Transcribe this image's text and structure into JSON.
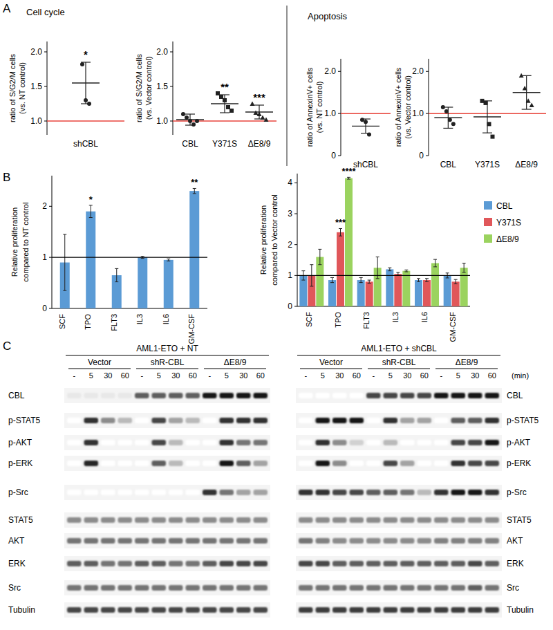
{
  "panel_labels": [
    "A",
    "B",
    "C"
  ],
  "section_titles": [
    "Cell cycle",
    "Apoptosis"
  ],
  "chart_data": [
    {
      "type": "dot",
      "ylabel": [
        "ratio of S/G2/M cells",
        "(vs. NT control)"
      ],
      "categories": [
        "shCBL"
      ],
      "values": [
        1.55
      ],
      "errors": [
        0.3
      ],
      "points": [
        [
          1.82,
          1.3,
          1.25
        ]
      ],
      "annotations": [
        "*"
      ],
      "reference": 1,
      "ylim": [
        0.8,
        2.15
      ],
      "yticks": [
        {
          "value": 1,
          "label": "1.0"
        },
        {
          "value": 1.5,
          "label": "1.5"
        },
        {
          "value": 2,
          "label": "2.0"
        }
      ]
    },
    {
      "type": "dot",
      "ylabel": [
        "ratio of S/G2/M cells",
        "(vs. Vector control)"
      ],
      "categories": [
        "CBL",
        "Y371S",
        "ΔE8/9"
      ],
      "values": [
        1.02,
        1.25,
        1.13
      ],
      "errors": [
        0.08,
        0.13,
        0.1
      ],
      "points": [
        [
          1.1,
          1.05,
          1.0,
          0.95,
          1.0
        ],
        [
          1.4,
          1.35,
          1.3,
          1.2,
          1.15
        ],
        [
          1.25,
          1.12,
          1.1,
          1.05,
          1.02
        ]
      ],
      "annotations": [
        null,
        "**",
        "***"
      ],
      "reference": 1,
      "ylim": [
        0.8,
        2.15
      ],
      "yticks": [
        {
          "value": 1,
          "label": "1.0"
        },
        {
          "value": 1.5,
          "label": "1.5"
        },
        {
          "value": 2,
          "label": "2.0"
        }
      ]
    },
    {
      "type": "dot",
      "ylabel": [
        "ratio of AnnexinV+ cells",
        "(vs. NT control)"
      ],
      "categories": [
        "shCBL"
      ],
      "values": [
        0.7
      ],
      "errors": [
        0.17
      ],
      "points": [
        [
          0.85,
          0.8,
          0.5
        ]
      ],
      "reference": 1,
      "ylim": [
        0,
        2.3
      ],
      "yticks": [
        0,
        {
          "value": 1,
          "label": "1.0"
        },
        {
          "value": 2,
          "label": "2.0"
        }
      ]
    },
    {
      "type": "dot",
      "ylabel": [
        "ratio of AnnexinV+ cells",
        "(vs. Vector control)"
      ],
      "categories": [
        "CBL",
        "Y371S",
        "ΔE8/9"
      ],
      "values": [
        0.9,
        0.92,
        1.5
      ],
      "errors": [
        0.25,
        0.38,
        0.4
      ],
      "points": [
        [
          1.15,
          1.05,
          0.85,
          0.75
        ],
        [
          1.3,
          1.25,
          0.75,
          0.45
        ],
        [
          1.9,
          1.6,
          1.3,
          1.2
        ]
      ],
      "reference": 1,
      "ylim": [
        0,
        2.3
      ],
      "yticks": [
        0,
        {
          "value": 1,
          "label": "1.0"
        },
        {
          "value": 2,
          "label": "2.0"
        }
      ]
    },
    {
      "type": "bar",
      "ylabel": [
        "Relative proliferation",
        "compared to NT control"
      ],
      "categories": [
        "SCF",
        "TPO",
        "FLT3",
        "IL3",
        "IL6",
        "GM-CSF"
      ],
      "values": [
        0.9,
        1.9,
        0.65,
        1.0,
        0.95,
        2.3
      ],
      "errors": [
        0.55,
        0.12,
        0.13,
        0.02,
        0.02,
        0.05
      ],
      "annotations": [
        null,
        "*",
        null,
        null,
        null,
        "**"
      ],
      "color": "#5b9bd5",
      "reference": 1,
      "ylim": [
        0,
        2.6
      ],
      "yticks": [
        0,
        1,
        2
      ]
    },
    {
      "type": "bar",
      "ylabel": [
        "Relative proliferation",
        "compared to Vector control"
      ],
      "categories": [
        "SCF",
        "TPO",
        "FLT3",
        "IL3",
        "IL6",
        "GM-CSF"
      ],
      "series": [
        {
          "name": "CBL",
          "color": "#5b9bd5",
          "values": [
            1.0,
            0.85,
            0.85,
            1.2,
            0.85,
            1.0
          ],
          "errors": [
            0.15,
            0.08,
            0.08,
            0.05,
            0.05,
            0.08
          ]
        },
        {
          "name": "Y371S",
          "color": "#e0575a",
          "values": [
            1.0,
            2.4,
            0.8,
            1.05,
            0.85,
            0.8
          ],
          "errors": [
            0.35,
            0.12,
            0.05,
            0.05,
            0.05,
            0.07
          ],
          "annotations": [
            null,
            "***",
            null,
            null,
            null,
            null
          ]
        },
        {
          "name": "ΔE8/9",
          "color": "#9bd35f",
          "values": [
            1.6,
            4.15,
            1.25,
            1.15,
            1.4,
            1.25
          ],
          "errors": [
            0.25,
            0.03,
            0.35,
            0.03,
            0.12,
            0.15
          ],
          "annotations": [
            null,
            "****",
            null,
            null,
            null,
            null
          ]
        }
      ],
      "legend": "right",
      "reference": 1,
      "ylim": [
        0,
        4.3
      ],
      "yticks": [
        0,
        1,
        2,
        3,
        4
      ]
    }
  ],
  "blot": {
    "conditions": [
      "AML1-ETO + NT",
      "AML1-ETO + shCBL"
    ],
    "groups": [
      "Vector",
      "shR-CBL",
      "ΔE8/9"
    ],
    "times": [
      "-",
      "5",
      "30",
      "60"
    ],
    "time_unit": "(min)",
    "rows": [
      {
        "name": "CBL",
        "intensity": [
          [
            0.1,
            0.1,
            0.1,
            0.1,
            0.7,
            0.7,
            0.7,
            0.7,
            1,
            1,
            1,
            1
          ],
          [
            0,
            0,
            0,
            0,
            0.8,
            0.8,
            0.8,
            0.8,
            1,
            1,
            1,
            1
          ]
        ]
      },
      {
        "name": "p-STAT5",
        "intensity": [
          [
            0,
            0.9,
            0.5,
            0.3,
            0,
            0.8,
            0.4,
            0.3,
            0,
            0.9,
            0.9,
            0.9
          ],
          [
            0,
            1,
            1,
            1,
            0,
            0.9,
            0.4,
            0.4,
            0,
            0.7,
            0.7,
            0.9
          ]
        ]
      },
      {
        "name": "p-AKT",
        "intensity": [
          [
            0,
            0.9,
            0,
            0,
            0,
            0.8,
            0.3,
            0,
            0,
            0.9,
            0.6,
            0.6
          ],
          [
            0,
            0.9,
            0.5,
            0.2,
            0,
            0.3,
            0,
            0,
            0,
            0.8,
            0.8,
            1
          ]
        ]
      },
      {
        "name": "p-ERK",
        "intensity": [
          [
            0,
            0.95,
            0,
            0,
            0,
            0.7,
            0.3,
            0,
            0,
            1,
            0.7,
            0.4
          ],
          [
            0,
            1,
            0.5,
            0,
            0,
            0.8,
            0.4,
            0,
            0,
            0.9,
            0.8,
            0.8
          ]
        ]
      },
      {
        "name": "p-Src",
        "intensity": [
          [
            0,
            0,
            0,
            0,
            0,
            0,
            0,
            0,
            0.9,
            0.6,
            0.4,
            0.4
          ],
          [
            0.9,
            0.9,
            0.8,
            0.8,
            0.7,
            0.7,
            0.6,
            0.3,
            0.9,
            1,
            1,
            0.9
          ]
        ]
      },
      {
        "name": "STAT5",
        "intensity": [
          [
            0.5,
            0.5,
            0.5,
            0.5,
            0.5,
            0.5,
            0.5,
            0.5,
            0.5,
            0.5,
            0.5,
            0.5
          ],
          [
            0.5,
            0.5,
            0.5,
            0.5,
            0.5,
            0.5,
            0.5,
            0.5,
            0.5,
            0.5,
            0.5,
            0.5
          ]
        ]
      },
      {
        "name": "AKT",
        "intensity": [
          [
            0.6,
            0.6,
            0.6,
            0.6,
            0.6,
            0.6,
            0.6,
            0.6,
            0.6,
            0.6,
            0.6,
            0.6
          ],
          [
            0.6,
            0.55,
            0.5,
            0.5,
            0.5,
            0.5,
            0.5,
            0.5,
            0.55,
            0.55,
            0.55,
            0.55
          ]
        ]
      },
      {
        "name": "ERK",
        "intensity": [
          [
            0.7,
            0.7,
            0.6,
            0.6,
            0.7,
            0.7,
            0.6,
            0.6,
            0.7,
            0.8,
            0.8,
            0.8
          ],
          [
            0.8,
            0.8,
            0.7,
            0.7,
            0.7,
            0.7,
            0.7,
            0.7,
            0.7,
            0.7,
            0.8,
            0.7
          ]
        ]
      },
      {
        "name": "Src",
        "intensity": [
          [
            0.6,
            0.6,
            0.6,
            0.6,
            0.6,
            0.6,
            0.6,
            0.6,
            0.6,
            0.6,
            0.6,
            0.6
          ],
          [
            0.6,
            0.6,
            0.6,
            0.6,
            0.6,
            0.6,
            0.6,
            0.6,
            0.6,
            0.6,
            0.7,
            0.6
          ]
        ]
      },
      {
        "name": "Tubulin",
        "intensity": [
          [
            0.8,
            0.8,
            0.8,
            0.8,
            0.8,
            0.8,
            0.8,
            0.8,
            0.8,
            0.8,
            0.8,
            0.8
          ],
          [
            0.85,
            0.85,
            0.85,
            0.85,
            0.85,
            0.85,
            0.85,
            0.85,
            0.85,
            0.85,
            0.85,
            0.85
          ]
        ]
      }
    ]
  }
}
